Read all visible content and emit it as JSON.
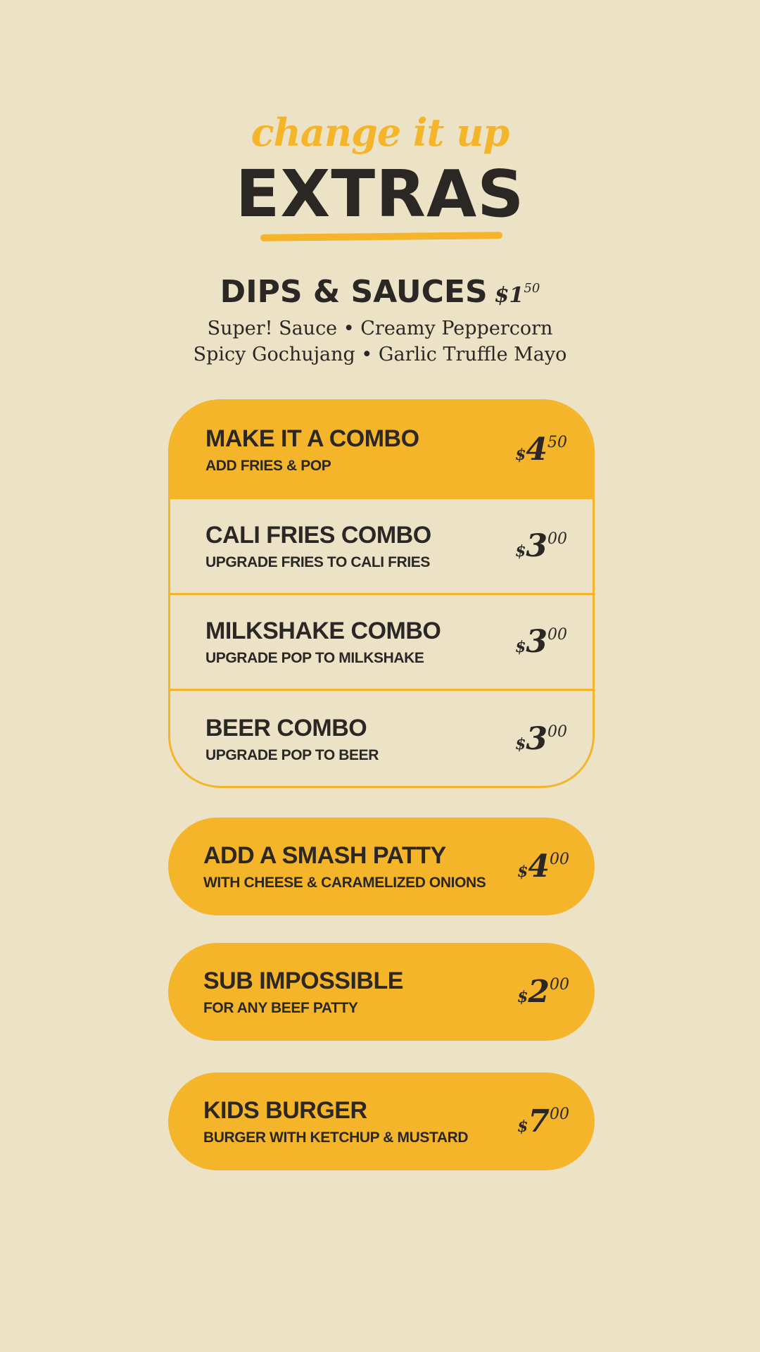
{
  "header": {
    "tagline": "change it up",
    "title": "EXTRAS"
  },
  "dips": {
    "title": "DIPS & SAUCES",
    "price": {
      "currency": "$",
      "whole": "1",
      "cents": "50"
    },
    "line1": "Super! Sauce • Creamy Peppercorn",
    "line2": "Spicy Gochujang • Garlic Truffle Mayo"
  },
  "combo": [
    {
      "title": "MAKE IT A COMBO",
      "subtitle": "ADD FRIES & POP",
      "price": {
        "currency": "$",
        "whole": "4",
        "cents": "50"
      }
    },
    {
      "title": "CALI FRIES COMBO",
      "subtitle": "UPGRADE FRIES TO CALI FRIES",
      "price": {
        "currency": "$",
        "whole": "3",
        "cents": "00"
      }
    },
    {
      "title": "MILKSHAKE COMBO",
      "subtitle": "UPGRADE POP TO MILKSHAKE",
      "price": {
        "currency": "$",
        "whole": "3",
        "cents": "00"
      }
    },
    {
      "title": "BEER COMBO",
      "subtitle": "UPGRADE POP TO BEER",
      "price": {
        "currency": "$",
        "whole": "3",
        "cents": "00"
      }
    }
  ],
  "extras": [
    {
      "title": "ADD A SMASH PATTY",
      "subtitle": "WITH CHEESE & CARAMELIZED ONIONS",
      "price": {
        "currency": "$",
        "whole": "4",
        "cents": "00"
      }
    },
    {
      "title": "SUB IMPOSSIBLE",
      "subtitle": "FOR ANY BEEF PATTY",
      "price": {
        "currency": "$",
        "whole": "2",
        "cents": "00"
      }
    },
    {
      "title": "KIDS BURGER",
      "subtitle": "BURGER WITH KETCHUP & MUSTARD",
      "price": {
        "currency": "$",
        "whole": "7",
        "cents": "00"
      }
    }
  ],
  "colors": {
    "background": "#ece3c7",
    "accent": "#f4b52a",
    "text": "#2b2724"
  }
}
